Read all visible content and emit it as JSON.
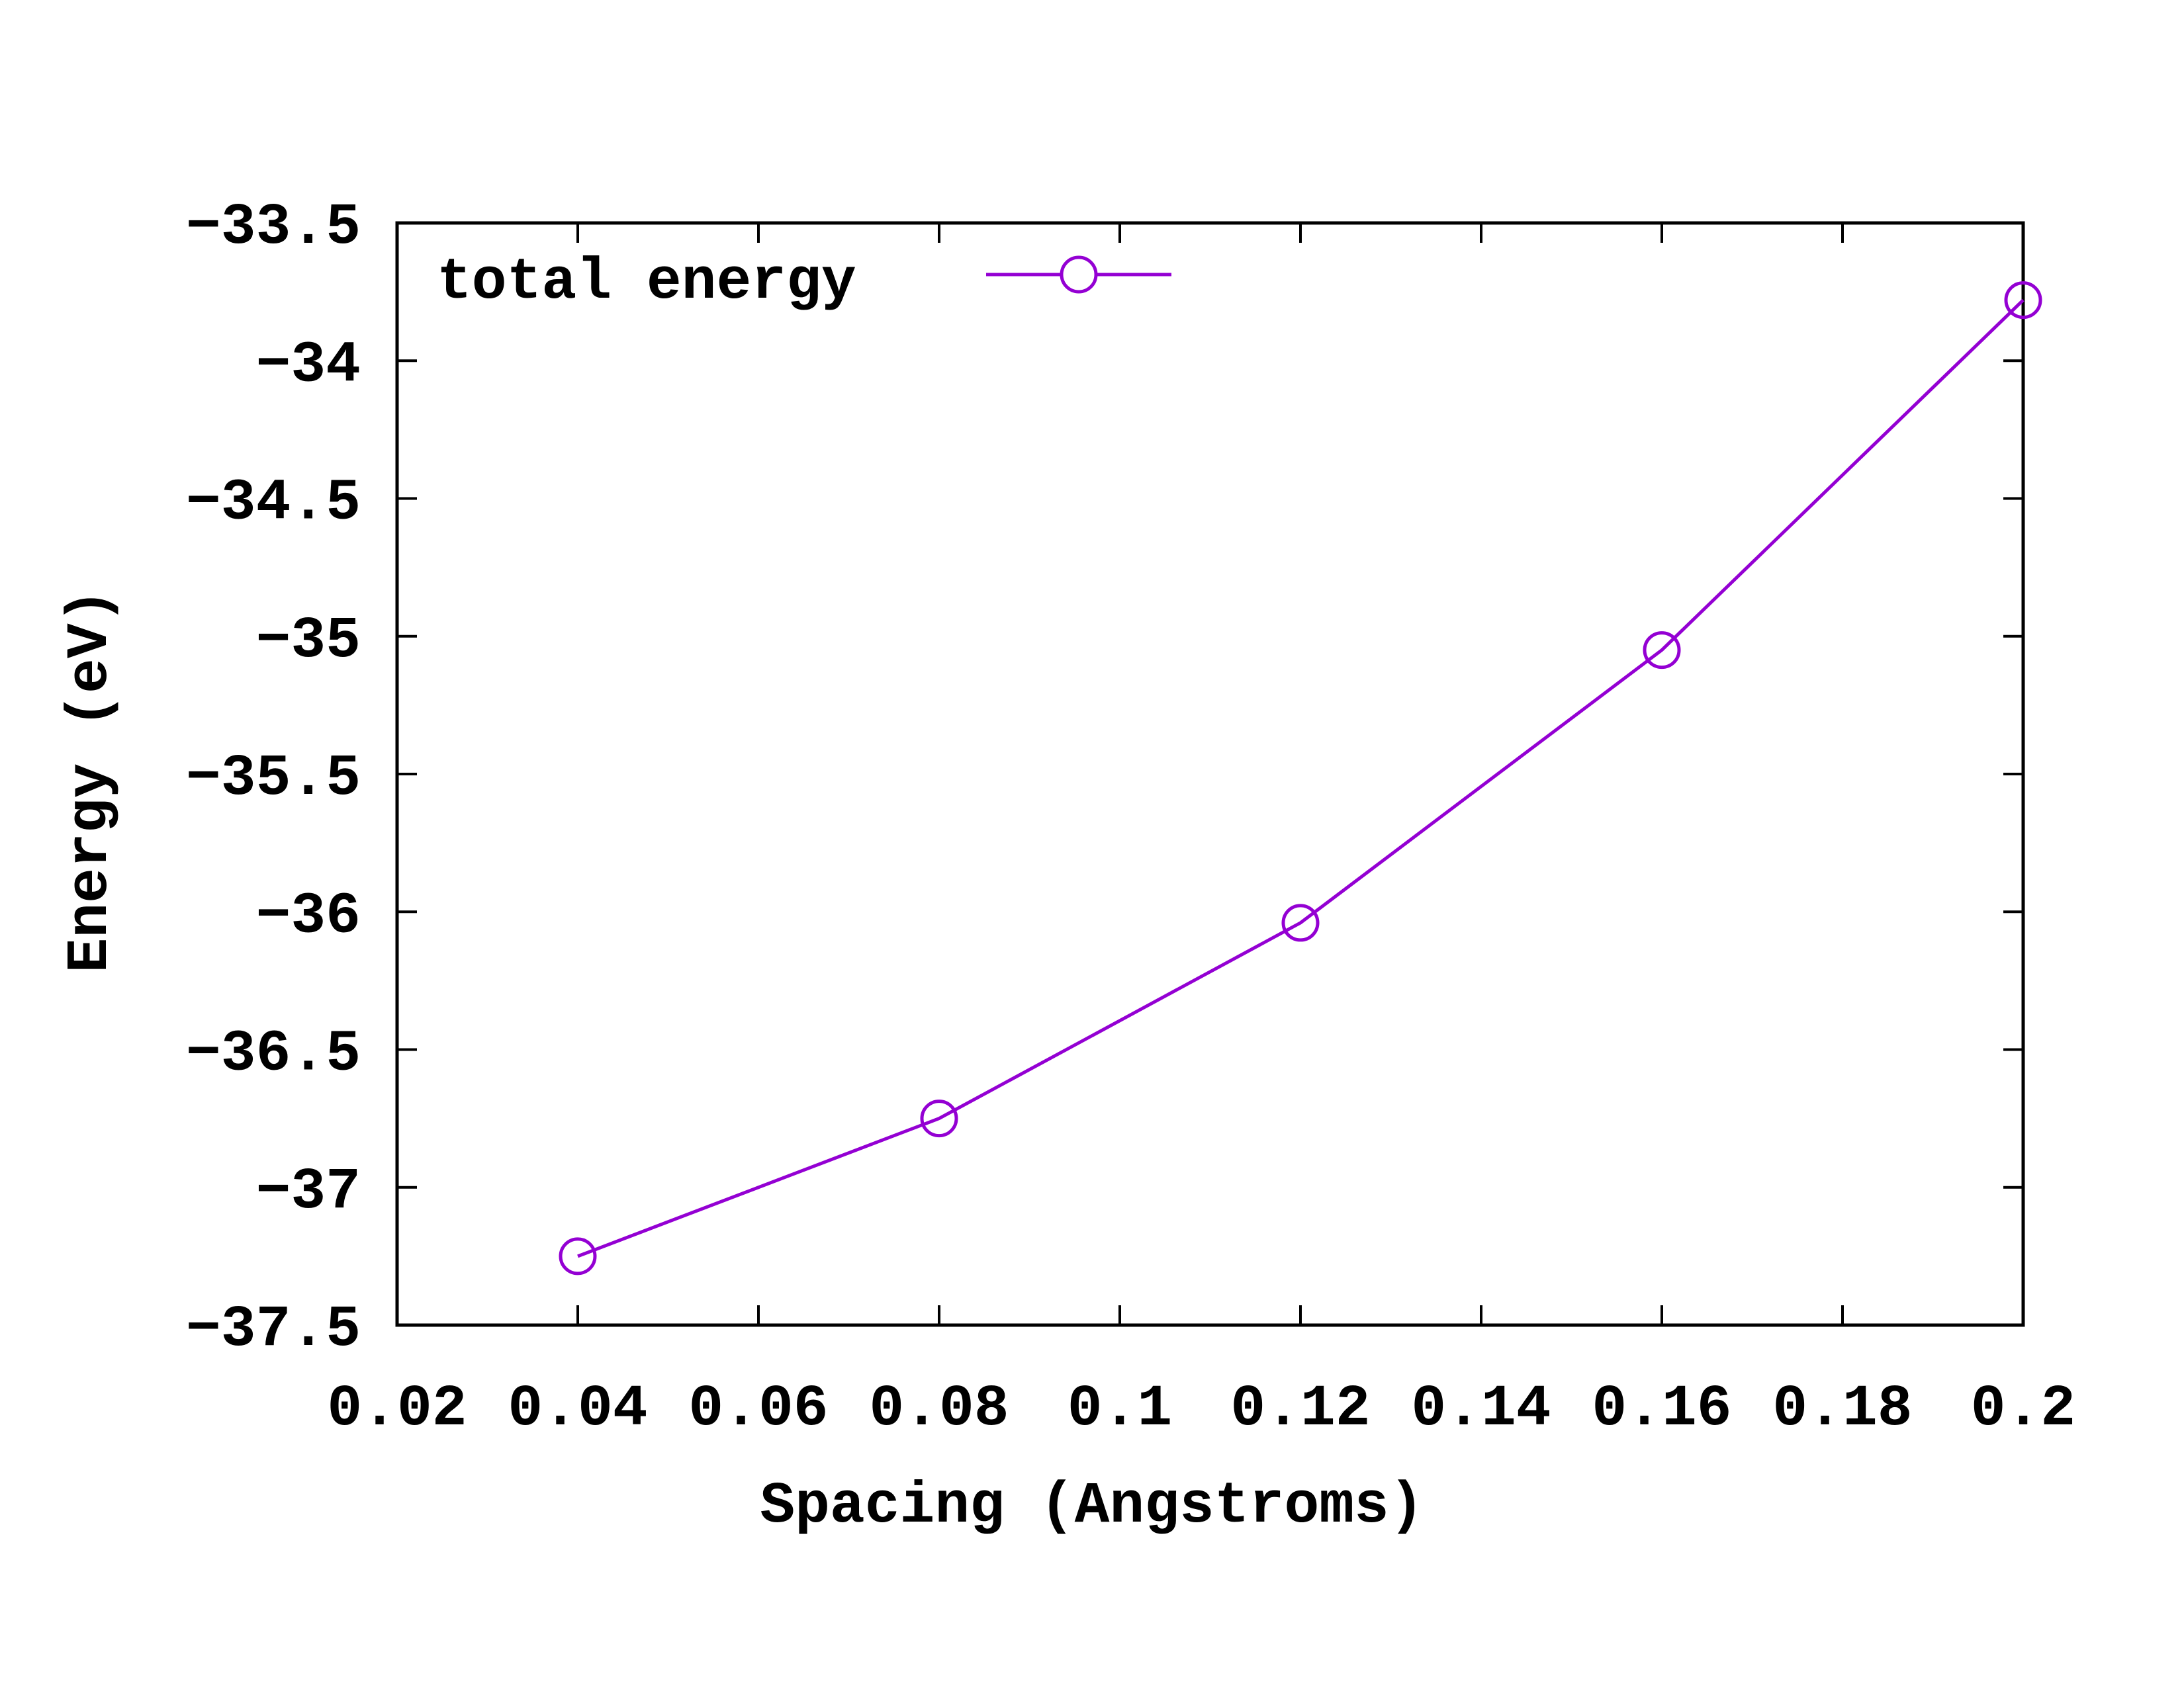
{
  "chart_data": {
    "type": "line",
    "xlabel": "Spacing (Angstroms)",
    "ylabel": "Energy (eV)",
    "xlim": [
      0.02,
      0.2
    ],
    "ylim": [
      -37.5,
      -33.5
    ],
    "xticks": [
      0.02,
      0.04,
      0.06,
      0.08,
      0.1,
      0.12,
      0.14,
      0.16,
      0.18,
      0.2
    ],
    "xtick_labels": [
      "0.02",
      "0.04",
      "0.06",
      "0.08",
      "0.1",
      "0.12",
      "0.14",
      "0.16",
      "0.18",
      "0.2"
    ],
    "yticks": [
      -37.5,
      -37,
      -36.5,
      -36,
      -35.5,
      -35,
      -34.5,
      -34,
      -33.5
    ],
    "ytick_labels": [
      "-37.5",
      "-37",
      "-36.5",
      "-36",
      "-35.5",
      "-35",
      "-34.5",
      "-34",
      "-33.5"
    ],
    "grid": false,
    "legend_position": "top-left",
    "series": [
      {
        "name": "total energy",
        "color": "#9400d3",
        "marker": "open-circle",
        "x": [
          0.04,
          0.08,
          0.12,
          0.16,
          0.2
        ],
        "y": [
          -37.25,
          -36.75,
          -36.04,
          -35.05,
          -33.78
        ]
      }
    ]
  }
}
